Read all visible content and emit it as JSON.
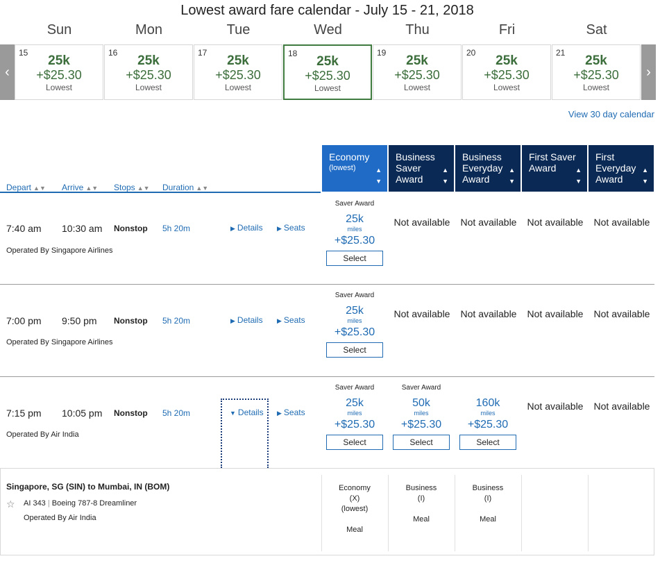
{
  "calendar": {
    "title": "Lowest award fare calendar - July 15 - 21, 2018",
    "prev_icon": "chevron-left-icon",
    "next_icon": "chevron-right-icon",
    "selected_color": "#3f7a3f",
    "days": [
      {
        "name": "Sun",
        "date": "15",
        "miles": "25k",
        "price": "+$25.30",
        "label": "Lowest"
      },
      {
        "name": "Mon",
        "date": "16",
        "miles": "25k",
        "price": "+$25.30",
        "label": "Lowest"
      },
      {
        "name": "Tue",
        "date": "17",
        "miles": "25k",
        "price": "+$25.30",
        "label": "Lowest"
      },
      {
        "name": "Wed",
        "date": "18",
        "miles": "25k",
        "price": "+$25.30",
        "label": "Lowest",
        "selected": true
      },
      {
        "name": "Thu",
        "date": "19",
        "miles": "25k",
        "price": "+$25.30",
        "label": "Lowest"
      },
      {
        "name": "Fri",
        "date": "20",
        "miles": "25k",
        "price": "+$25.30",
        "label": "Lowest"
      },
      {
        "name": "Sat",
        "date": "21",
        "miles": "25k",
        "price": "+$25.30",
        "label": "Lowest"
      }
    ],
    "view30": "View 30 day calendar"
  },
  "columns": {
    "depart": "Depart",
    "arrive": "Arrive",
    "stops": "Stops",
    "duration": "Duration"
  },
  "cabins": [
    {
      "line1": "Economy",
      "line2": "(lowest)",
      "active": true
    },
    {
      "line1": "Business Saver Award"
    },
    {
      "line1": "Business Everyday Award"
    },
    {
      "line1": "First Saver Award"
    },
    {
      "line1": "First Everyday Award"
    }
  ],
  "flights": [
    {
      "depart": "7:40 am",
      "arrive": "10:30 am",
      "stops": "Nonstop",
      "duration": "5h 20m",
      "details": "Details",
      "seats": "Seats",
      "operated": "Operated By Singapore Airlines",
      "fares": [
        {
          "award": "Saver Award",
          "miles": "25k",
          "unit": "miles",
          "price": "+$25.30",
          "button": "Select"
        },
        {
          "na": "Not available"
        },
        {
          "na": "Not available"
        },
        {
          "na": "Not available"
        },
        {
          "na": "Not available"
        }
      ]
    },
    {
      "depart": "7:00 pm",
      "arrive": "9:50 pm",
      "stops": "Nonstop",
      "duration": "5h 20m",
      "details": "Details",
      "seats": "Seats",
      "operated": "Operated By Singapore Airlines",
      "fares": [
        {
          "award": "Saver Award",
          "miles": "25k",
          "unit": "miles",
          "price": "+$25.30",
          "button": "Select"
        },
        {
          "na": "Not available"
        },
        {
          "na": "Not available"
        },
        {
          "na": "Not available"
        },
        {
          "na": "Not available"
        }
      ]
    },
    {
      "depart": "7:15 pm",
      "arrive": "10:05 pm",
      "stops": "Nonstop",
      "duration": "5h 20m",
      "details": "Details",
      "seats": "Seats",
      "operated": "Operated By Air India",
      "fares": [
        {
          "award": "Saver Award",
          "miles": "25k",
          "unit": "miles",
          "price": "+$25.30",
          "button": "Select"
        },
        {
          "award": "Saver Award",
          "miles": "50k",
          "unit": "miles",
          "price": "+$25.30",
          "button": "Select"
        },
        {
          "award": "",
          "miles": "160k",
          "unit": "miles",
          "price": "+$25.30",
          "button": "Select"
        },
        {
          "na": "Not available"
        },
        {
          "na": "Not available"
        }
      ]
    }
  ],
  "details_panel": {
    "route": "Singapore, SG (SIN) to Mumbai, IN (BOM)",
    "flight_no": "AI 343",
    "separator": "|",
    "aircraft": "Boeing 787-8 Dreamliner",
    "operated": "Operated By Air India",
    "cabins": [
      {
        "name": "Economy",
        "code": "(X)",
        "note": "(lowest)",
        "meal": "Meal"
      },
      {
        "name": "Business",
        "code": "(I)",
        "meal": "Meal"
      },
      {
        "name": "Business",
        "code": "(I)",
        "meal": "Meal"
      }
    ]
  }
}
